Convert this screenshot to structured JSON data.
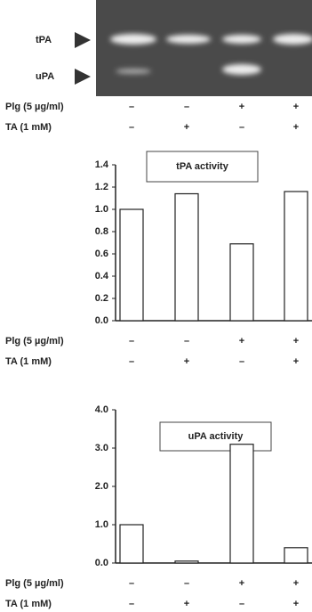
{
  "gel": {
    "labels": [
      "tPA",
      "uPA"
    ]
  },
  "treatment_rows": [
    {
      "name": "Plg (5 µg/ml)",
      "signs": [
        "–",
        "–",
        "+",
        "+"
      ]
    },
    {
      "name": "TA (1 mM)",
      "signs": [
        "–",
        "+",
        "–",
        "+"
      ]
    }
  ],
  "chart_data": [
    {
      "type": "bar",
      "title": "tPA activity",
      "values": [
        1.0,
        1.14,
        0.69,
        1.16
      ],
      "color": "#ffffff",
      "ylim": [
        0,
        1.4
      ],
      "yticks": [
        {
          "value": 0,
          "label": "0.0"
        },
        {
          "value": 0.2,
          "label": "0.2"
        },
        {
          "value": 0.4,
          "label": "0.4"
        },
        {
          "value": 0.6,
          "label": "0.6"
        },
        {
          "value": 0.8,
          "label": "0.8"
        },
        {
          "value": 1,
          "label": "1.0"
        },
        {
          "value": 1.2,
          "label": "1.2"
        },
        {
          "value": 1.4,
          "label": "1.4"
        }
      ]
    },
    {
      "type": "bar",
      "title": "uPA activity",
      "values": [
        1.0,
        0.05,
        3.1,
        0.4
      ],
      "color": "#ffffff",
      "ylim": [
        0,
        4
      ],
      "yticks": [
        {
          "value": 0,
          "label": "0.0"
        },
        {
          "value": 1,
          "label": "1.0"
        },
        {
          "value": 2,
          "label": "2.0"
        },
        {
          "value": 3,
          "label": "3.0"
        },
        {
          "value": 4,
          "label": "4.0"
        }
      ]
    }
  ]
}
